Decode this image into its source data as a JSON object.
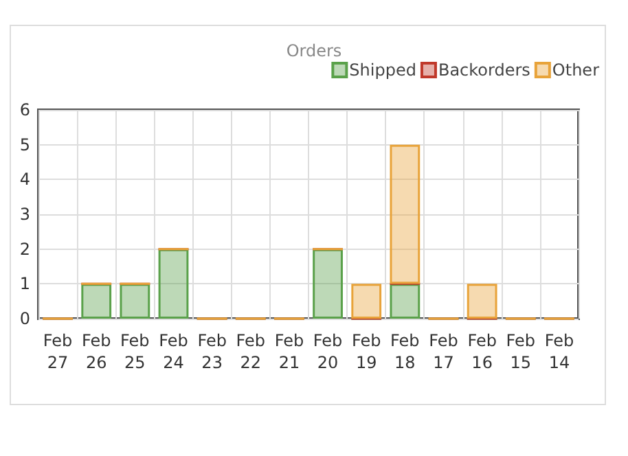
{
  "chart_data": {
    "type": "bar",
    "title": "Orders",
    "stacked": true,
    "categories": [
      "Feb 27",
      "Feb 26",
      "Feb 25",
      "Feb 24",
      "Feb 23",
      "Feb 22",
      "Feb 21",
      "Feb 20",
      "Feb 19",
      "Feb 18",
      "Feb 17",
      "Feb 16",
      "Feb 15",
      "Feb 14"
    ],
    "series": [
      {
        "name": "Shipped",
        "color": "#5aa14a",
        "values": [
          0,
          1,
          1,
          2,
          0,
          0,
          0,
          2,
          0,
          1,
          0,
          0,
          0,
          0
        ]
      },
      {
        "name": "Backorders",
        "color": "#c0392b",
        "values": [
          0,
          0,
          0,
          0,
          0,
          0,
          0,
          0,
          0,
          0,
          0,
          0,
          0,
          0
        ]
      },
      {
        "name": "Other",
        "color": "#e8a33a",
        "values": [
          0,
          0,
          0,
          0,
          0,
          0,
          0,
          0,
          1,
          4,
          0,
          1,
          0,
          0
        ]
      }
    ],
    "ylim": [
      0,
      6
    ],
    "yticks": [
      0,
      1,
      2,
      3,
      4,
      5,
      6
    ],
    "grid": true,
    "legend": "top right"
  }
}
